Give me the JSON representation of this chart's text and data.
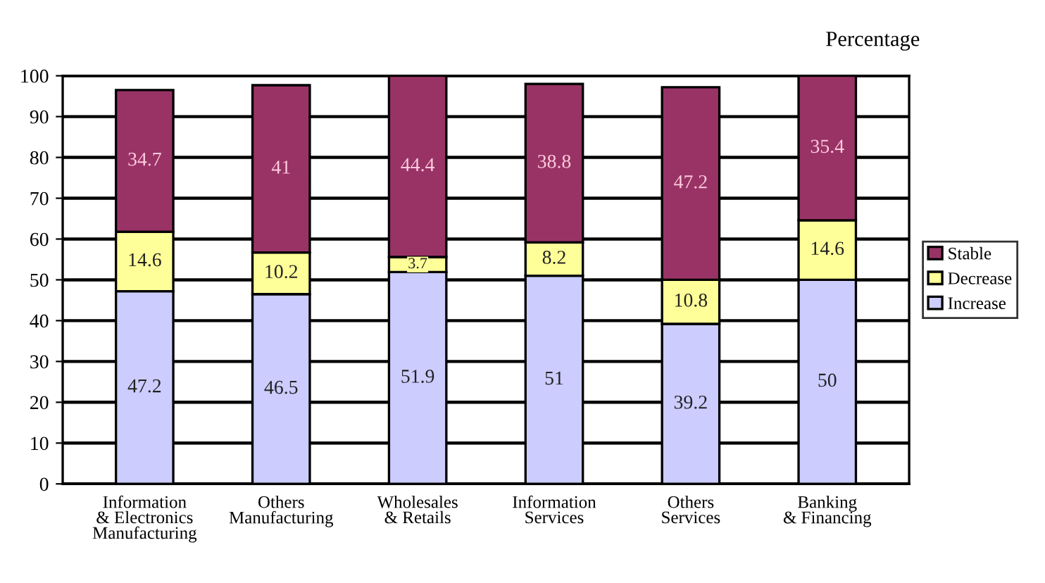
{
  "chart_data": {
    "type": "bar",
    "stacked": true,
    "ylabel": "Percentage",
    "categories": [
      "Information\n& Electronics\nManufacturing",
      "Others\nManufacturing",
      "Wholesales\n& Retails",
      "Information\nServices",
      "Others\nServices",
      "Banking\n& Financing"
    ],
    "series": [
      {
        "name": "Increase",
        "color": "#ccccff",
        "values": [
          47.2,
          46.5,
          51.9,
          51,
          39.2,
          50
        ]
      },
      {
        "name": "Decrease",
        "color": "#ffff99",
        "values": [
          14.6,
          10.2,
          3.7,
          8.2,
          10.8,
          14.6
        ]
      },
      {
        "name": "Stable",
        "color": "#993366",
        "values": [
          34.7,
          41,
          44.4,
          38.8,
          47.2,
          35.4
        ]
      }
    ],
    "ylim": [
      0,
      100
    ],
    "yticks": [
      0,
      10,
      20,
      30,
      40,
      50,
      60,
      70,
      80,
      90,
      100
    ],
    "grid": "y",
    "legend": "right",
    "data_labels": true
  }
}
